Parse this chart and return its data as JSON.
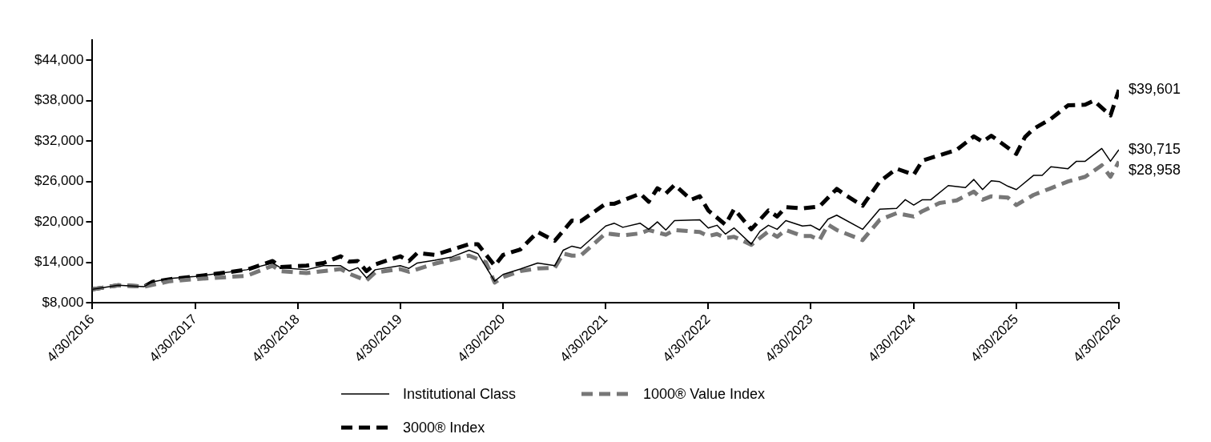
{
  "chart_data": {
    "type": "line",
    "legend": "bottom",
    "grid": false,
    "marker": "none",
    "xlim": [
      "2016-04-30",
      "2026-04-30"
    ],
    "xticks": [
      {
        "value": "2016-04-30",
        "label": "4/30/2016"
      },
      {
        "value": "2017-04-30",
        "label": "4/30/2017"
      },
      {
        "value": "2018-04-30",
        "label": "4/30/2018"
      },
      {
        "value": "2019-04-30",
        "label": "4/30/2019"
      },
      {
        "value": "2020-04-30",
        "label": "4/30/2020"
      },
      {
        "value": "2021-04-30",
        "label": "4/30/2021"
      },
      {
        "value": "2022-04-30",
        "label": "4/30/2022"
      },
      {
        "value": "2023-04-30",
        "label": "4/30/2023"
      },
      {
        "value": "2024-04-30",
        "label": "4/30/2024"
      },
      {
        "value": "2025-04-30",
        "label": "4/30/2025"
      },
      {
        "value": "2026-04-30",
        "label": "4/30/2026"
      }
    ],
    "ylim": [
      8000,
      47000
    ],
    "yticks": [
      {
        "value": 8000,
        "label": "$8,000"
      },
      {
        "value": 14000,
        "label": "$14,000"
      },
      {
        "value": 20000,
        "label": "$20,000"
      },
      {
        "value": 26000,
        "label": "$26,000"
      },
      {
        "value": 32000,
        "label": "$32,000"
      },
      {
        "value": 38000,
        "label": "$38,000"
      },
      {
        "value": 44000,
        "label": "$44,000"
      }
    ],
    "series": [
      {
        "name": "Institutional Class",
        "color": "#000000",
        "line_style": "solid",
        "x": [
          "2016-04-30",
          "2016-07-31",
          "2016-10-31",
          "2016-11-30",
          "2017-01-31",
          "2017-04-30",
          "2017-10-31",
          "2018-01-31",
          "2018-02-28",
          "2018-05-31",
          "2018-07-31",
          "2018-09-30",
          "2018-10-31",
          "2018-11-30",
          "2018-12-31",
          "2019-01-31",
          "2019-04-30",
          "2019-05-31",
          "2019-06-30",
          "2019-08-31",
          "2019-10-31",
          "2019-12-31",
          "2020-01-31",
          "2020-03-31",
          "2020-04-30",
          "2020-06-30",
          "2020-08-31",
          "2020-10-31",
          "2020-11-30",
          "2020-12-31",
          "2021-01-31",
          "2021-04-30",
          "2021-05-31",
          "2021-06-30",
          "2021-08-31",
          "2021-09-30",
          "2021-10-31",
          "2021-11-30",
          "2021-12-31",
          "2022-03-31",
          "2022-04-30",
          "2022-05-31",
          "2022-06-30",
          "2022-07-31",
          "2022-09-30",
          "2022-10-31",
          "2022-11-30",
          "2022-12-31",
          "2023-01-31",
          "2023-03-31",
          "2023-04-30",
          "2023-05-31",
          "2023-06-30",
          "2023-07-31",
          "2023-10-31",
          "2023-12-31",
          "2024-02-29",
          "2024-03-31",
          "2024-04-30",
          "2024-05-31",
          "2024-06-30",
          "2024-08-31",
          "2024-10-31",
          "2024-11-30",
          "2024-12-31",
          "2025-01-31",
          "2025-02-28",
          "2025-03-31",
          "2025-04-30",
          "2025-06-30",
          "2025-07-31",
          "2025-08-31",
          "2025-10-31",
          "2025-11-30",
          "2025-12-31",
          "2026-02-28",
          "2026-03-31",
          "2026-04-30"
        ],
        "values": [
          10000,
          10600,
          10400,
          11100,
          11600,
          11900,
          12900,
          13900,
          13200,
          12900,
          13500,
          13500,
          12700,
          13200,
          11700,
          12900,
          13500,
          13100,
          13900,
          14300,
          14800,
          15800,
          15300,
          11200,
          12200,
          13000,
          13900,
          13500,
          15800,
          16400,
          16100,
          19400,
          19800,
          19200,
          19800,
          18900,
          20000,
          18800,
          20200,
          20300,
          19100,
          19500,
          18200,
          19100,
          16700,
          18600,
          19500,
          18900,
          20200,
          19400,
          19500,
          18800,
          20400,
          21000,
          18900,
          21900,
          22000,
          23300,
          22500,
          23300,
          23300,
          25400,
          25100,
          26300,
          24800,
          26100,
          26000,
          25300,
          24800,
          26900,
          26900,
          28200,
          27900,
          29000,
          29000,
          30900,
          29000,
          30715
        ]
      },
      {
        "name": "1000® Value Index",
        "color": "#777777",
        "line_style": "dashed",
        "x": [
          "2016-04-30",
          "2016-07-31",
          "2016-10-31",
          "2017-01-31",
          "2017-04-30",
          "2017-10-31",
          "2018-01-31",
          "2018-02-28",
          "2018-05-31",
          "2018-09-30",
          "2018-10-31",
          "2018-12-31",
          "2019-01-31",
          "2019-04-30",
          "2019-05-31",
          "2019-08-31",
          "2019-12-31",
          "2020-02-29",
          "2020-03-31",
          "2020-04-30",
          "2020-06-30",
          "2020-08-31",
          "2020-10-31",
          "2020-11-30",
          "2020-12-31",
          "2021-01-31",
          "2021-04-30",
          "2021-06-30",
          "2021-08-31",
          "2021-09-30",
          "2021-11-30",
          "2021-12-31",
          "2022-03-31",
          "2022-04-30",
          "2022-05-31",
          "2022-06-30",
          "2022-07-31",
          "2022-09-30",
          "2022-11-30",
          "2022-12-31",
          "2023-01-31",
          "2023-03-31",
          "2023-04-30",
          "2023-05-31",
          "2023-06-30",
          "2023-07-31",
          "2023-10-31",
          "2023-12-31",
          "2024-02-29",
          "2024-04-30",
          "2024-05-31",
          "2024-07-31",
          "2024-09-30",
          "2024-11-30",
          "2024-12-31",
          "2025-01-31",
          "2025-03-31",
          "2025-04-30",
          "2025-06-30",
          "2025-08-31",
          "2025-10-31",
          "2025-12-31",
          "2026-02-28",
          "2026-03-31",
          "2026-04-30"
        ],
        "values": [
          10000,
          10600,
          10400,
          11200,
          11500,
          12000,
          13500,
          12700,
          12400,
          13000,
          12300,
          11300,
          12500,
          13000,
          12600,
          13800,
          15000,
          14000,
          11000,
          11800,
          12700,
          13100,
          13200,
          15300,
          15000,
          15000,
          18300,
          18000,
          18300,
          18800,
          18100,
          18800,
          18500,
          17900,
          18200,
          17600,
          17800,
          16600,
          18600,
          17800,
          18800,
          17900,
          17900,
          17300,
          19600,
          18800,
          17300,
          20300,
          21300,
          20800,
          21600,
          22800,
          23200,
          24500,
          23300,
          23800,
          23600,
          22500,
          24000,
          25000,
          26000,
          26700,
          28400,
          26700,
          28958
        ]
      },
      {
        "name": "3000® Index",
        "color": "#000000",
        "line_style": "dashed",
        "x": [
          "2016-04-30",
          "2016-07-31",
          "2016-10-31",
          "2016-11-30",
          "2017-01-31",
          "2017-04-30",
          "2017-10-31",
          "2018-01-31",
          "2018-02-28",
          "2018-05-31",
          "2018-07-31",
          "2018-09-30",
          "2018-10-31",
          "2018-11-30",
          "2018-12-31",
          "2019-01-31",
          "2019-04-30",
          "2019-05-31",
          "2019-06-30",
          "2019-08-31",
          "2019-10-31",
          "2019-12-31",
          "2020-01-31",
          "2020-03-31",
          "2020-04-30",
          "2020-06-30",
          "2020-08-31",
          "2020-10-31",
          "2020-12-31",
          "2021-01-31",
          "2021-04-30",
          "2021-05-31",
          "2021-08-31",
          "2021-09-30",
          "2021-10-31",
          "2021-11-30",
          "2021-12-31",
          "2022-02-28",
          "2022-03-31",
          "2022-04-30",
          "2022-06-30",
          "2022-07-31",
          "2022-09-30",
          "2022-11-30",
          "2022-12-31",
          "2023-01-31",
          "2023-03-31",
          "2023-05-31",
          "2023-07-31",
          "2023-08-31",
          "2023-10-31",
          "2023-12-31",
          "2024-02-29",
          "2024-04-30",
          "2024-05-31",
          "2024-09-30",
          "2024-11-30",
          "2024-12-31",
          "2025-01-31",
          "2025-04-30",
          "2025-05-31",
          "2025-06-30",
          "2025-08-31",
          "2025-10-31",
          "2025-12-31",
          "2026-01-31",
          "2026-03-31",
          "2026-04-30"
        ],
        "values": [
          10000,
          10600,
          10400,
          11100,
          11500,
          11900,
          12900,
          14200,
          13300,
          13500,
          13900,
          14900,
          14100,
          14200,
          12700,
          13700,
          14900,
          14200,
          15400,
          15100,
          15900,
          16700,
          16700,
          13500,
          15100,
          15900,
          18500,
          17200,
          20200,
          20100,
          22700,
          22700,
          24200,
          23000,
          25000,
          24200,
          25500,
          23300,
          23800,
          21700,
          19600,
          21900,
          18900,
          21700,
          20800,
          22200,
          22000,
          22300,
          24900,
          24000,
          22400,
          26000,
          27900,
          27000,
          29100,
          30700,
          32700,
          31900,
          32800,
          30100,
          32600,
          33800,
          35300,
          37300,
          37400,
          38000,
          35800,
          39601
        ]
      }
    ],
    "annotations": [
      {
        "text": "$39,601",
        "x": "2026-04-30",
        "y": 39601
      },
      {
        "text": "$30,715",
        "x": "2026-04-30",
        "y": 30715
      },
      {
        "text": "$28,958",
        "x": "2026-04-30",
        "y": 28958
      }
    ]
  }
}
